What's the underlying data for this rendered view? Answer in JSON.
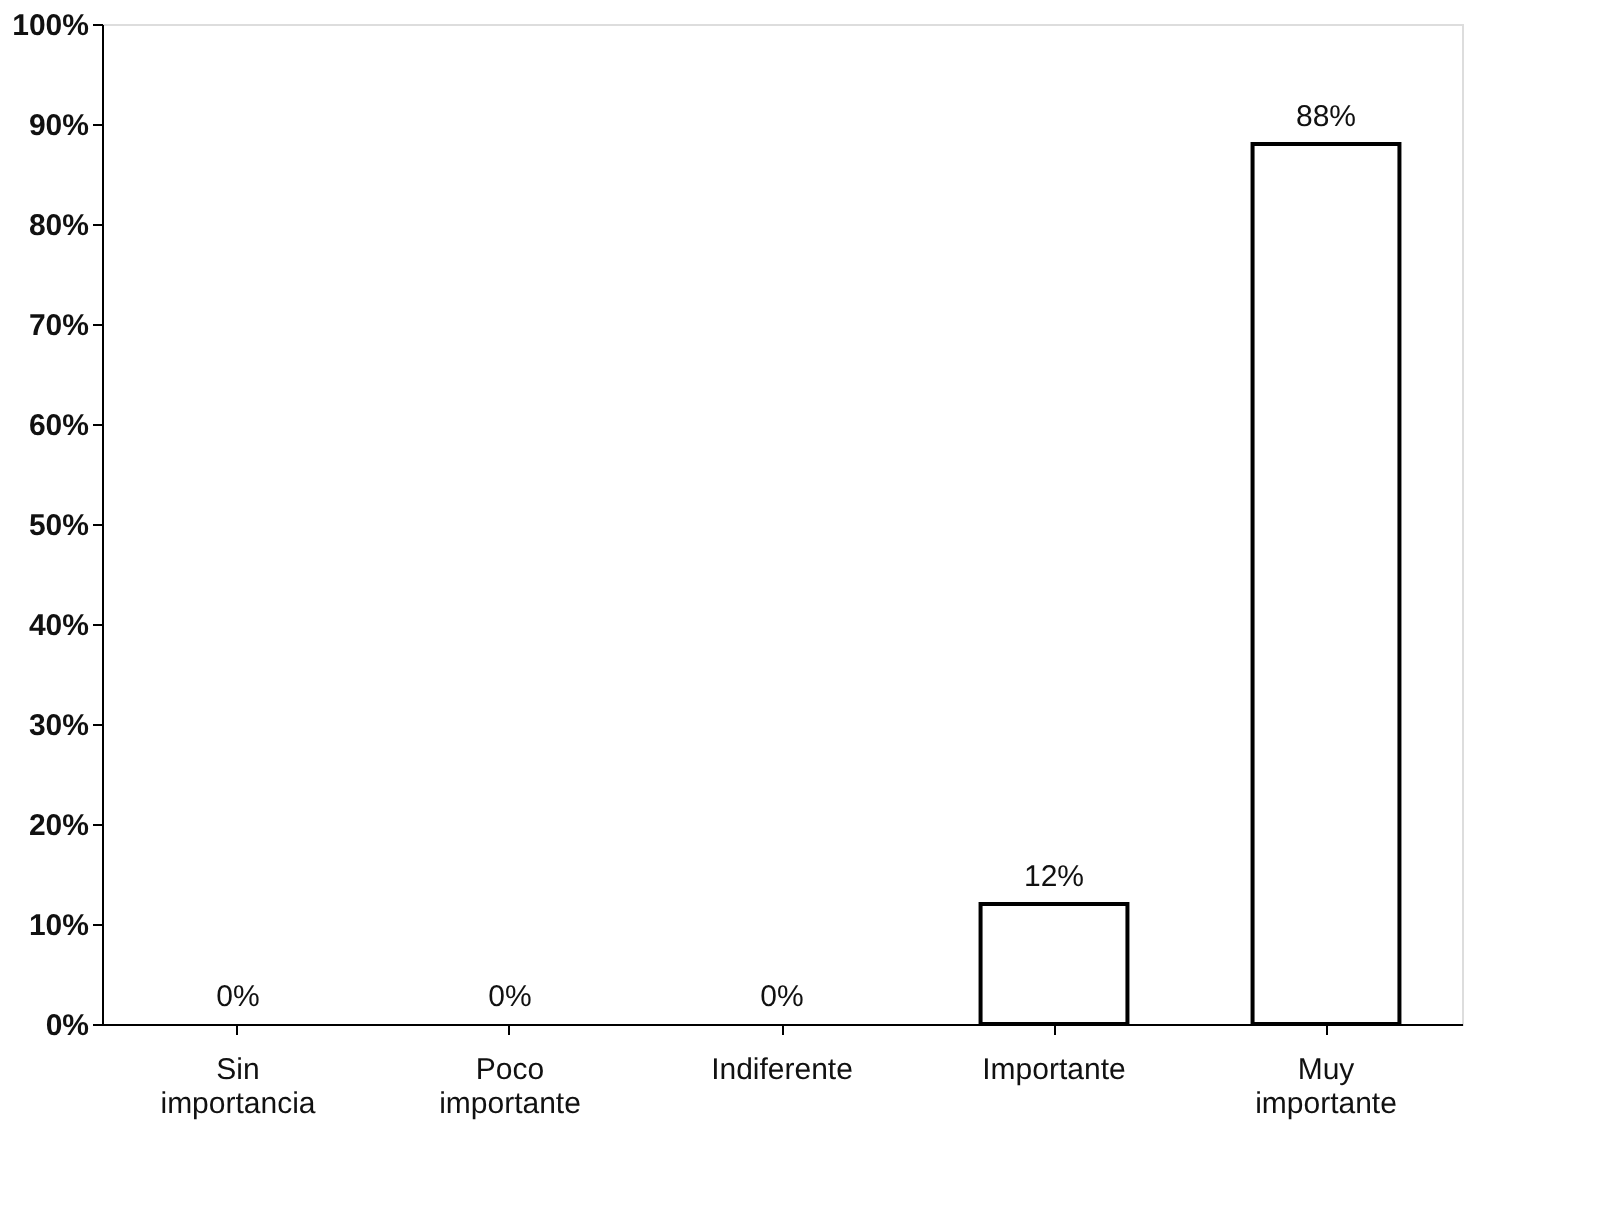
{
  "chart_data": {
    "type": "bar",
    "categories": [
      "Sin importancia",
      "Poco importante",
      "Indiferente",
      "Importante",
      "Muy importante"
    ],
    "values": [
      0,
      0,
      0,
      12,
      88
    ],
    "value_labels": [
      "0%",
      "0%",
      "0%",
      "12%",
      "88%"
    ],
    "color": "#ffffff",
    "ylim": [
      0,
      100
    ],
    "yticks": [
      {
        "value": 0,
        "label": "0%"
      },
      {
        "value": 10,
        "label": "10%"
      },
      {
        "value": 20,
        "label": "20%"
      },
      {
        "value": 30,
        "label": "30%"
      },
      {
        "value": 40,
        "label": "40%"
      },
      {
        "value": 50,
        "label": "50%"
      },
      {
        "value": 60,
        "label": "60%"
      },
      {
        "value": 70,
        "label": "70%"
      },
      {
        "value": 80,
        "label": "80%"
      },
      {
        "value": 90,
        "label": "90%"
      },
      {
        "value": 100,
        "label": "100%"
      }
    ],
    "grid": false
  }
}
